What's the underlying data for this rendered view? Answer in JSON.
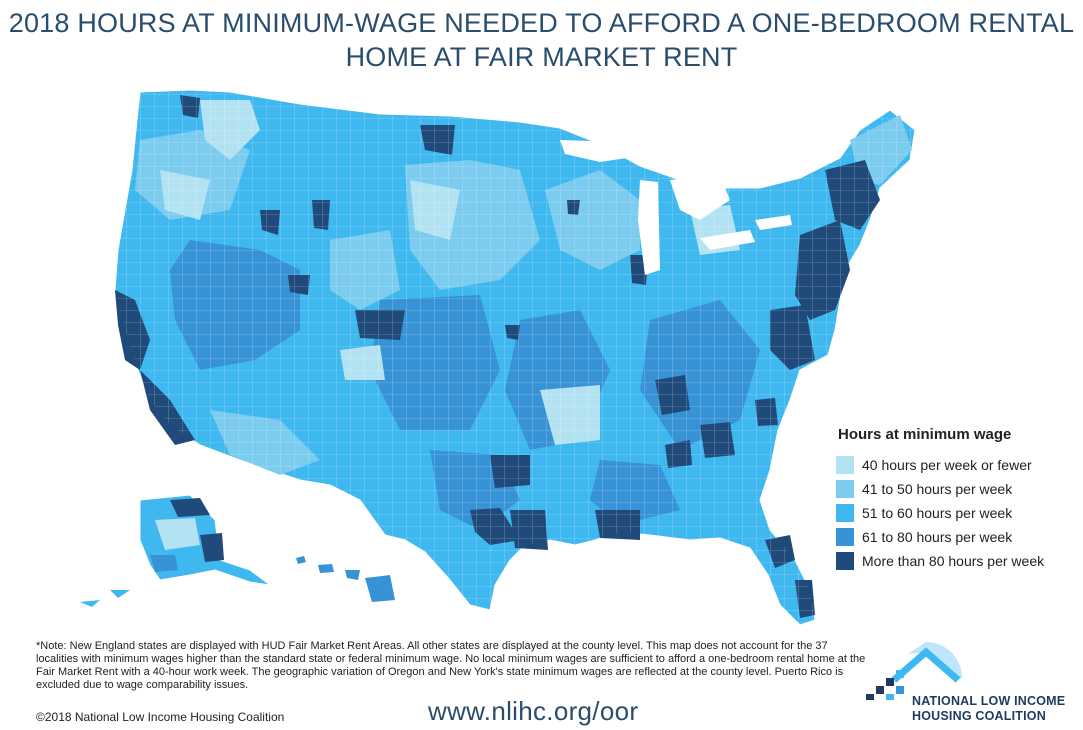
{
  "title": {
    "line1": "2018 HOURS AT MINIMUM-WAGE NEEDED TO AFFORD A ONE-BEDROOM RENTAL",
    "line2": "HOME AT FAIR MARKET RENT"
  },
  "legend": {
    "title": "Hours at minimum wage",
    "items": [
      {
        "label": "40 hours per week or fewer",
        "color": "#b3e2f2"
      },
      {
        "label": "41 to 50 hours per week",
        "color": "#7cccef"
      },
      {
        "label": "51 to 60 hours per week",
        "color": "#3fb8f0"
      },
      {
        "label": "61 to 80 hours per week",
        "color": "#3792d6"
      },
      {
        "label": "More than 80 hours per week",
        "color": "#1f4a7a"
      }
    ]
  },
  "note": "*Note: New England states are displayed with HUD Fair Market Rent Areas. All other states are displayed at the county level. This map does not account for the 37 localities with minimum wages higher than the standard state or federal minimum wage. No local minimum wages are sufficient to afford a one-bedroom rental home at the Fair Market Rent with a 40-hour work week. The geographic variation of Oregon and New York's state minimum wages are reflected at the county level.  Puerto Rico is excluded due to wage comparability issues.",
  "copyright": "©2018 National Low Income Housing Coalition",
  "url": "www.nlihc.org/oor",
  "logo": {
    "line1": "NATIONAL LOW INCOME",
    "line2": "HOUSING COALITION",
    "icon": "house-icon"
  },
  "colors": {
    "title": "#2a4d6e",
    "border": "#ffffff"
  }
}
